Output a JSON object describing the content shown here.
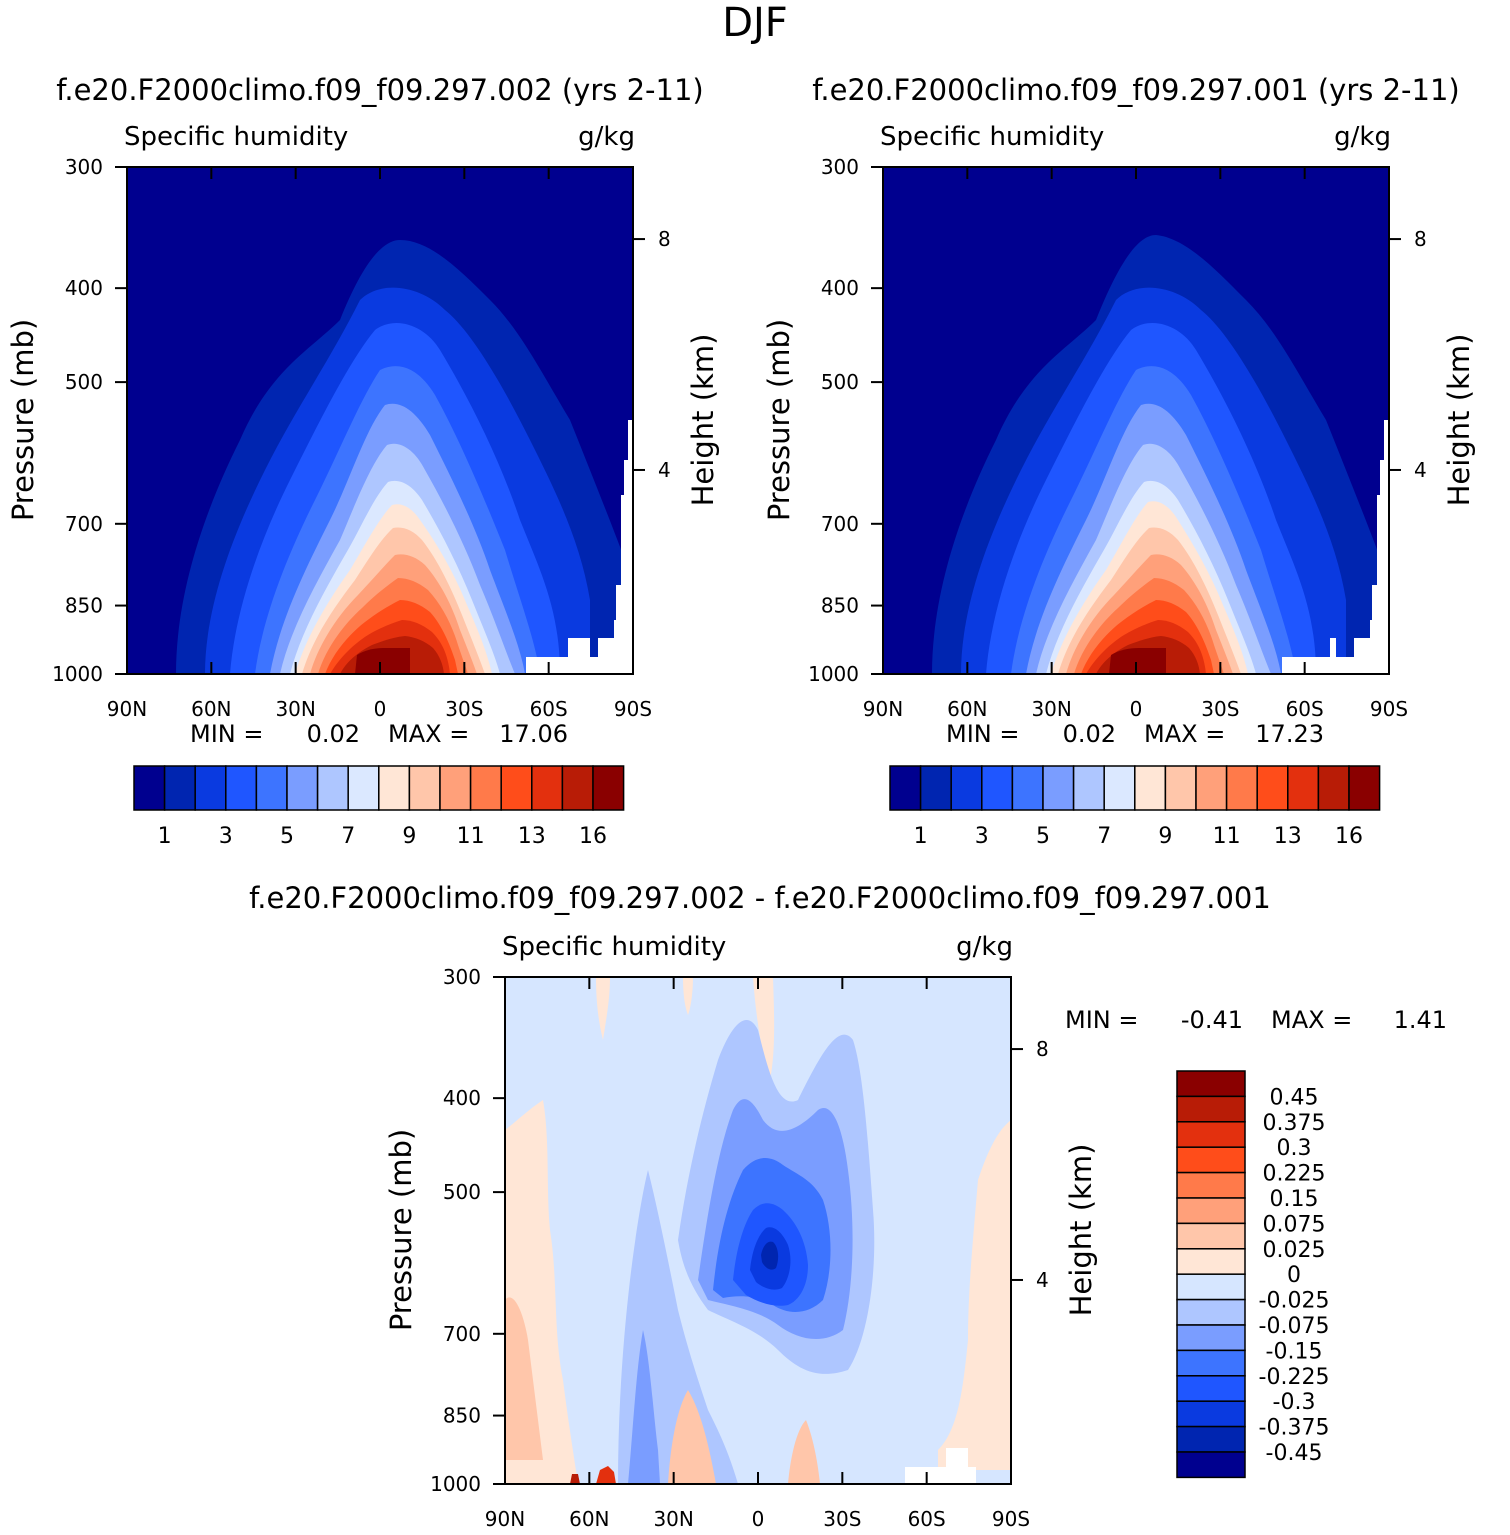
{
  "figure_title": "DJF",
  "chart_data": [
    {
      "type": "heatmap",
      "id": "top-left",
      "title": "f.e20.F2000climo.f09_f09.297.002 (yrs 2-11)",
      "variable": "Specific humidity",
      "units": "g/kg",
      "ylabel": "Pressure (mb)",
      "y2label": "Height (km)",
      "xticks": [
        "90N",
        "60N",
        "30N",
        "0",
        "30S",
        "60S",
        "90S"
      ],
      "yticks": [
        "300",
        "400",
        "500",
        "700",
        "850",
        "1000"
      ],
      "y2ticks": [
        "8",
        "4"
      ],
      "min_label": "MIN =",
      "min_value": "0.02",
      "max_label": "MAX =",
      "max_value": "17.06",
      "levels": [
        "1",
        "3",
        "5",
        "7",
        "9",
        "11",
        "13",
        "16"
      ],
      "colors": [
        "#00008f",
        "#0025b0",
        "#0a3ae0",
        "#1f56ff",
        "#3d74ff",
        "#7a9dff",
        "#aec6ff",
        "#dbe8ff",
        "#ffe6d6",
        "#ffc6aa",
        "#ffa07a",
        "#ff7a4a",
        "#ff4d1a",
        "#e3300e",
        "#b81c06",
        "#8a0000"
      ]
    },
    {
      "type": "heatmap",
      "id": "top-right",
      "title": "f.e20.F2000climo.f09_f09.297.001 (yrs 2-11)",
      "variable": "Specific humidity",
      "units": "g/kg",
      "ylabel": "Pressure (mb)",
      "y2label": "Height (km)",
      "xticks": [
        "90N",
        "60N",
        "30N",
        "0",
        "30S",
        "60S",
        "90S"
      ],
      "yticks": [
        "300",
        "400",
        "500",
        "700",
        "850",
        "1000"
      ],
      "y2ticks": [
        "8",
        "4"
      ],
      "min_label": "MIN =",
      "min_value": "0.02",
      "max_label": "MAX =",
      "max_value": "17.23",
      "levels": [
        "1",
        "3",
        "5",
        "7",
        "9",
        "11",
        "13",
        "16"
      ],
      "colors": [
        "#00008f",
        "#0025b0",
        "#0a3ae0",
        "#1f56ff",
        "#3d74ff",
        "#7a9dff",
        "#aec6ff",
        "#dbe8ff",
        "#ffe6d6",
        "#ffc6aa",
        "#ffa07a",
        "#ff7a4a",
        "#ff4d1a",
        "#e3300e",
        "#b81c06",
        "#8a0000"
      ]
    },
    {
      "type": "heatmap",
      "id": "bottom-diff",
      "title": "f.e20.F2000climo.f09_f09.297.002 - f.e20.F2000climo.f09_f09.297.001",
      "variable": "Specific humidity",
      "units": "g/kg",
      "ylabel": "Pressure (mb)",
      "y2label": "Height (km)",
      "xticks": [
        "90N",
        "60N",
        "30N",
        "0",
        "30S",
        "60S",
        "90S"
      ],
      "yticks": [
        "300",
        "400",
        "500",
        "700",
        "850",
        "1000"
      ],
      "y2ticks": [
        "8",
        "4"
      ],
      "min_label": "MIN =",
      "min_value": "-0.41",
      "max_label": "MAX =",
      "max_value": "1.41",
      "levels": [
        "0.45",
        "0.375",
        "0.3",
        "0.225",
        "0.15",
        "0.075",
        "0.025",
        "0",
        "-0.025",
        "-0.075",
        "-0.15",
        "-0.225",
        "-0.3",
        "-0.375",
        "-0.45"
      ],
      "colors": [
        "#8a0000",
        "#b81c06",
        "#e3300e",
        "#ff4d1a",
        "#ff7a4a",
        "#ffa07a",
        "#ffc6aa",
        "#ffe6d6",
        "#d6e6ff",
        "#aec6ff",
        "#7a9dff",
        "#3d74ff",
        "#1f56ff",
        "#0a3ae0",
        "#0025b0",
        "#00008f"
      ]
    }
  ]
}
